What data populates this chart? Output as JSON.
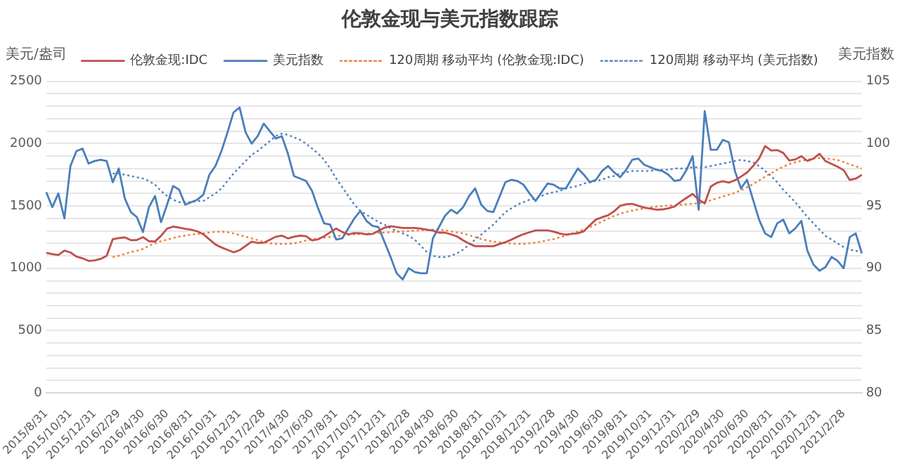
{
  "chart_data": {
    "type": "line",
    "title": "伦敦金现与美元指数跟踪",
    "ylabel": "美元/盎司",
    "y2label": "美元指数",
    "categories": [
      "2015/8/31",
      null,
      null,
      null,
      "2015/10/31",
      null,
      null,
      null,
      "2015/12/31",
      null,
      null,
      null,
      "2016/2/29",
      null,
      null,
      null,
      "2016/4/30",
      null,
      null,
      null,
      "2016/6/30",
      null,
      null,
      null,
      "2016/8/31",
      null,
      null,
      null,
      "2016/10/31",
      null,
      null,
      null,
      "2016/12/31",
      null,
      null,
      null,
      "2017/2/28",
      null,
      null,
      null,
      "2017/4/30",
      null,
      null,
      null,
      "2017/6/30",
      null,
      null,
      null,
      "2017/8/31",
      null,
      null,
      null,
      "2017/10/31",
      null,
      null,
      null,
      "2017/12/31",
      null,
      null,
      null,
      "2018/2/28",
      null,
      null,
      null,
      "2018/4/30",
      null,
      null,
      null,
      "2018/6/30",
      null,
      null,
      null,
      "2018/8/31",
      null,
      null,
      null,
      "2018/10/31",
      null,
      null,
      null,
      "2018/12/31",
      null,
      null,
      null,
      "2019/2/28",
      null,
      null,
      null,
      "2019/4/30",
      null,
      null,
      null,
      "2019/6/30",
      null,
      null,
      null,
      "2019/8/31",
      null,
      null,
      null,
      "2019/10/31",
      null,
      null,
      null,
      "2019/12/31",
      null,
      null,
      null,
      "2020/2/29",
      null,
      null,
      null,
      "2020/4/30",
      null,
      null,
      null,
      "2020/6/30",
      null,
      null,
      null,
      "2020/8/31",
      null,
      null,
      null,
      "2020/10/31",
      null,
      null,
      null,
      "2020/12/31",
      null,
      null,
      null,
      "2021/2/28",
      null,
      null,
      null
    ],
    "series": [
      {
        "name": "伦敦金现:IDC",
        "color": "#c0504d",
        "line_style": "solid",
        "values": [
          1123,
          1114,
          1106,
          1142,
          1127,
          1094,
          1080,
          1059,
          1063,
          1075,
          1100,
          1233,
          1242,
          1248,
          1225,
          1227,
          1250,
          1217,
          1215,
          1260,
          1318,
          1334,
          1326,
          1317,
          1310,
          1296,
          1273,
          1232,
          1191,
          1167,
          1148,
          1128,
          1145,
          1179,
          1213,
          1203,
          1205,
          1228,
          1253,
          1262,
          1239,
          1253,
          1261,
          1257,
          1224,
          1232,
          1257,
          1288,
          1319,
          1291,
          1272,
          1283,
          1281,
          1272,
          1275,
          1300,
          1325,
          1337,
          1330,
          1323,
          1323,
          1323,
          1318,
          1309,
          1302,
          1286,
          1286,
          1272,
          1255,
          1224,
          1198,
          1177,
          1177,
          1177,
          1177,
          1194,
          1209,
          1230,
          1253,
          1273,
          1289,
          1304,
          1304,
          1304,
          1294,
          1278,
          1270,
          1275,
          1281,
          1297,
          1346,
          1391,
          1409,
          1425,
          1457,
          1501,
          1514,
          1517,
          1501,
          1487,
          1478,
          1470,
          1472,
          1481,
          1495,
          1532,
          1565,
          1596,
          1550,
          1520,
          1655,
          1685,
          1698,
          1687,
          1706,
          1735,
          1768,
          1820,
          1880,
          1980,
          1945,
          1948,
          1925,
          1865,
          1873,
          1899,
          1861,
          1880,
          1918,
          1859,
          1837,
          1814,
          1787,
          1708,
          1719,
          1749
        ]
      },
      {
        "name": "美元指数",
        "color": "#4a7ebb",
        "axis": "y2",
        "line_style": "solid",
        "values": [
          96.1,
          94.9,
          96.0,
          94.0,
          98.2,
          99.4,
          99.6,
          98.4,
          98.6,
          98.7,
          98.6,
          96.9,
          98.0,
          95.6,
          94.5,
          94.1,
          92.9,
          94.9,
          95.8,
          93.7,
          95.1,
          96.6,
          96.3,
          95.1,
          95.3,
          95.5,
          95.9,
          97.5,
          98.2,
          99.4,
          100.9,
          102.5,
          102.9,
          100.9,
          100.0,
          100.6,
          101.6,
          101.0,
          100.4,
          100.6,
          99.2,
          97.4,
          97.2,
          97.0,
          96.2,
          94.8,
          93.6,
          93.5,
          92.3,
          92.4,
          93.2,
          94.0,
          94.6,
          93.8,
          93.4,
          93.3,
          92.1,
          90.9,
          89.6,
          89.1,
          90.0,
          89.7,
          89.6,
          89.6,
          92.4,
          93.3,
          94.2,
          94.7,
          94.4,
          94.9,
          95.8,
          96.4,
          95.1,
          94.6,
          94.5,
          95.7,
          96.9,
          97.1,
          97.0,
          96.7,
          96.0,
          95.4,
          96.1,
          96.8,
          96.7,
          96.4,
          96.4,
          97.2,
          98.0,
          97.5,
          96.9,
          97.1,
          97.8,
          98.2,
          97.7,
          97.3,
          97.9,
          98.7,
          98.8,
          98.3,
          98.1,
          97.9,
          97.8,
          97.5,
          97.0,
          97.1,
          97.9,
          99.0,
          94.7,
          102.6,
          99.5,
          99.5,
          100.3,
          100.1,
          97.8,
          96.4,
          97.1,
          95.5,
          93.9,
          92.8,
          92.5,
          93.6,
          93.9,
          92.8,
          93.2,
          93.8,
          91.4,
          90.3,
          89.8,
          90.1,
          90.9,
          90.6,
          90.0,
          92.5,
          92.8,
          91.2
        ]
      },
      {
        "name": "120周期 移动平均 (伦敦金现:IDC)",
        "color": "#ed7d31",
        "line_style": "dotted",
        "values": [
          null,
          null,
          null,
          null,
          null,
          null,
          null,
          null,
          null,
          null,
          null,
          1090,
          1100,
          1115,
          1130,
          1140,
          1155,
          1180,
          1200,
          1218,
          1230,
          1243,
          1255,
          1262,
          1270,
          1275,
          1280,
          1287,
          1292,
          1293,
          1290,
          1280,
          1266,
          1254,
          1240,
          1225,
          1210,
          1200,
          1196,
          1196,
          1196,
          1200,
          1210,
          1222,
          1232,
          1240,
          1246,
          1252,
          1258,
          1263,
          1268,
          1272,
          1275,
          1278,
          1280,
          1284,
          1286,
          1290,
          1293,
          1296,
          1299,
          1302,
          1304,
          1306,
          1310,
          1312,
          1305,
          1295,
          1288,
          1280,
          1265,
          1250,
          1235,
          1222,
          1214,
          1208,
          1203,
          1198,
          1196,
          1196,
          1200,
          1206,
          1215,
          1225,
          1234,
          1248,
          1262,
          1278,
          1295,
          1312,
          1330,
          1352,
          1375,
          1398,
          1420,
          1438,
          1452,
          1462,
          1472,
          1480,
          1488,
          1494,
          1499,
          1503,
          1506,
          1510,
          1514,
          1518,
          1522,
          1532,
          1545,
          1560,
          1575,
          1590,
          1605,
          1625,
          1650,
          1675,
          1705,
          1735,
          1762,
          1790,
          1815,
          1835,
          1850,
          1862,
          1872,
          1880,
          1884,
          1882,
          1876,
          1868,
          1852,
          1834,
          1818,
          1800
        ]
      },
      {
        "name": "120周期 移动平均 (美元指数)",
        "color": "#4f81bd",
        "axis": "y2",
        "line_style": "dotted",
        "values": [
          null,
          null,
          null,
          null,
          null,
          null,
          null,
          null,
          null,
          null,
          null,
          97.6,
          97.6,
          97.5,
          97.4,
          97.3,
          97.2,
          97.0,
          96.7,
          96.2,
          95.8,
          95.5,
          95.3,
          95.3,
          95.3,
          95.4,
          95.4,
          95.7,
          96.0,
          96.4,
          97.0,
          97.6,
          98.1,
          98.6,
          99.1,
          99.4,
          99.8,
          100.2,
          100.6,
          100.8,
          100.7,
          100.5,
          100.3,
          100.0,
          99.6,
          99.2,
          98.7,
          98.0,
          97.2,
          96.5,
          95.8,
          95.1,
          94.6,
          94.3,
          94.0,
          93.7,
          93.5,
          93.2,
          93.0,
          92.8,
          92.6,
          92.3,
          91.8,
          91.3,
          91.0,
          90.9,
          90.9,
          91.0,
          91.2,
          91.5,
          91.9,
          92.3,
          92.7,
          93.1,
          93.5,
          94.0,
          94.5,
          94.8,
          95.1,
          95.3,
          95.5,
          95.6,
          95.8,
          96.0,
          96.1,
          96.2,
          96.4,
          96.5,
          96.6,
          96.8,
          96.9,
          97.0,
          97.1,
          97.3,
          97.4,
          97.6,
          97.7,
          97.8,
          97.8,
          97.8,
          97.8,
          97.9,
          97.9,
          97.9,
          98.0,
          98.0,
          98.0,
          98.1,
          98.1,
          98.1,
          98.2,
          98.3,
          98.4,
          98.5,
          98.6,
          98.7,
          98.6,
          98.5,
          98.2,
          97.8,
          97.4,
          96.9,
          96.3,
          95.8,
          95.3,
          94.7,
          94.1,
          93.6,
          93.1,
          92.6,
          92.3,
          92.0,
          91.7,
          91.5,
          91.4,
          91.3
        ]
      }
    ],
    "ylim": [
      0,
      2500
    ],
    "yticks": [
      0,
      {
        "value": 100,
        "label": null
      },
      {
        "value": 200,
        "label": null
      },
      {
        "value": 300,
        "label": null
      },
      {
        "value": 400,
        "label": null
      },
      500,
      {
        "value": 600,
        "label": null
      },
      {
        "value": 700,
        "label": null
      },
      {
        "value": 800,
        "label": null
      },
      {
        "value": 900,
        "label": null
      },
      1000,
      {
        "value": 1100,
        "label": null
      },
      {
        "value": 1200,
        "label": null
      },
      {
        "value": 1300,
        "label": null
      },
      {
        "value": 1400,
        "label": null
      },
      1500,
      {
        "value": 1600,
        "label": null
      },
      {
        "value": 1700,
        "label": null
      },
      {
        "value": 1800,
        "label": null
      },
      {
        "value": 1900,
        "label": null
      },
      2000,
      {
        "value": 2100,
        "label": null
      },
      {
        "value": 2200,
        "label": null
      },
      {
        "value": 2300,
        "label": null
      },
      {
        "value": 2400,
        "label": null
      },
      2500
    ],
    "y2lim": [
      80,
      105
    ],
    "y2ticks": [
      80,
      85,
      90,
      95,
      100,
      105
    ],
    "grid": "y",
    "legend": "top",
    "marker": "none"
  }
}
